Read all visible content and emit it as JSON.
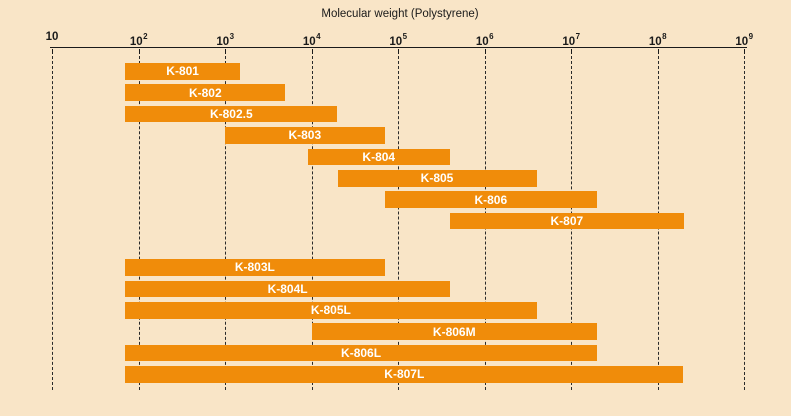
{
  "chart_data": {
    "type": "bar",
    "orientation": "horizontal-range",
    "title": "Molecular weight (Polystyrene)",
    "x_axis": {
      "scale": "log10",
      "range_exponents": [
        1,
        9
      ],
      "ticks": [
        {
          "base": "10",
          "exp": "",
          "e": 1
        },
        {
          "base": "10",
          "exp": "2",
          "e": 2
        },
        {
          "base": "10",
          "exp": "3",
          "e": 3
        },
        {
          "base": "10",
          "exp": "4",
          "e": 4
        },
        {
          "base": "10",
          "exp": "5",
          "e": 5
        },
        {
          "base": "10",
          "exp": "6",
          "e": 6
        },
        {
          "base": "10",
          "exp": "7",
          "e": 7
        },
        {
          "base": "10",
          "exp": "8",
          "e": 8
        },
        {
          "base": "10",
          "exp": "9",
          "e": 9
        }
      ]
    },
    "grid": "vertical-dashed",
    "legend": "none",
    "series": [
      {
        "label": "K-801",
        "mw_min": 70,
        "mw_max": 1500,
        "row": 0
      },
      {
        "label": "K-802",
        "mw_min": 70,
        "mw_max": 5000,
        "row": 1
      },
      {
        "label": "K-802.5",
        "mw_min": 70,
        "mw_max": 20000,
        "row": 2
      },
      {
        "label": "K-803",
        "mw_min": 1000,
        "mw_max": 70000,
        "row": 3
      },
      {
        "label": "K-804",
        "mw_min": 9000,
        "mw_max": 400000,
        "row": 4
      },
      {
        "label": "K-805",
        "mw_min": 20000,
        "mw_max": 4000000,
        "row": 5
      },
      {
        "label": "K-806",
        "mw_min": 70000,
        "mw_max": 20000000,
        "row": 6
      },
      {
        "label": "K-807",
        "mw_min": 400000,
        "mw_max": 200000000,
        "row": 7
      },
      {
        "label": "K-803L",
        "mw_min": 70,
        "mw_max": 70000,
        "row": 8
      },
      {
        "label": "K-804L",
        "mw_min": 70,
        "mw_max": 400000,
        "row": 9
      },
      {
        "label": "K-805L",
        "mw_min": 70,
        "mw_max": 4000000,
        "row": 10
      },
      {
        "label": "K-806M",
        "mw_min": 10000,
        "mw_max": 20000000,
        "row": 11
      },
      {
        "label": "K-806L",
        "mw_min": 70,
        "mw_max": 20000000,
        "row": 12
      },
      {
        "label": "K-807L",
        "mw_min": 70,
        "mw_max": 200000000,
        "row": 13
      }
    ],
    "colors": {
      "background": "#f9e5c7",
      "bar": "#f08c0a",
      "bar_label": "#ffffff",
      "axis": "#1a1a1a",
      "grid_line": "#2a2a2a"
    }
  }
}
